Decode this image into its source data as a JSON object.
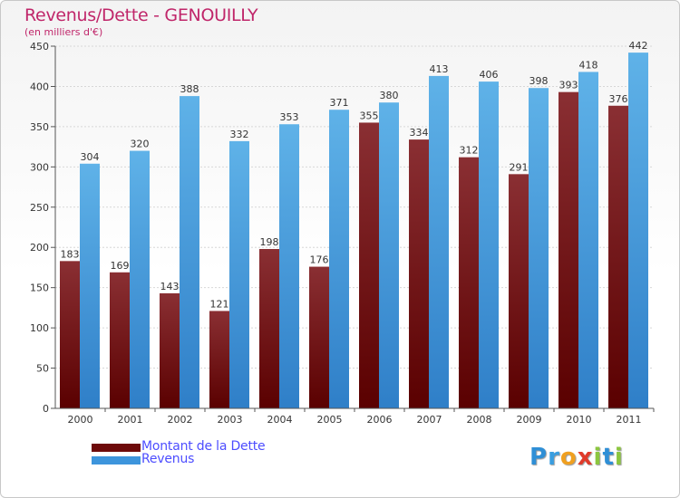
{
  "title": "Revenus/Dette - GENOUILLY",
  "subtitle": "(en milliers d'€)",
  "colors": {
    "title": "#c0266a",
    "dette": "#7a1e22",
    "revenus": "#4aa3df",
    "legend_text": "#4d4dff",
    "axis": "#555555"
  },
  "legend": [
    {
      "label": "Montant de la Dette",
      "color": "#6e0a0a"
    },
    {
      "label": "Revenus",
      "color": "#3d95dc"
    }
  ],
  "logo": {
    "letters": [
      "P",
      "r",
      "o",
      "x",
      "i",
      "t",
      "i"
    ],
    "colors": [
      "#2f8fd6",
      "#3a9ee0",
      "#f0a020",
      "#e03a2a",
      "#8cc63f",
      "#2f8fd6",
      "#8cc63f"
    ]
  },
  "chart_data": {
    "type": "bar",
    "categories": [
      "2000",
      "2001",
      "2002",
      "2003",
      "2004",
      "2005",
      "2006",
      "2007",
      "2008",
      "2009",
      "2010",
      "2011"
    ],
    "series": [
      {
        "name": "Montant de la Dette",
        "values": [
          183,
          169,
          143,
          121,
          198,
          176,
          355,
          334,
          312,
          291,
          393,
          376
        ]
      },
      {
        "name": "Revenus",
        "values": [
          304,
          320,
          388,
          332,
          353,
          371,
          380,
          413,
          406,
          398,
          418,
          442
        ]
      }
    ],
    "ylim": [
      0,
      450
    ],
    "yticks": [
      0,
      50,
      100,
      150,
      200,
      250,
      300,
      350,
      400,
      450
    ],
    "xlabel": "",
    "ylabel": "",
    "grid": true,
    "legend_position": "bottom-left"
  }
}
